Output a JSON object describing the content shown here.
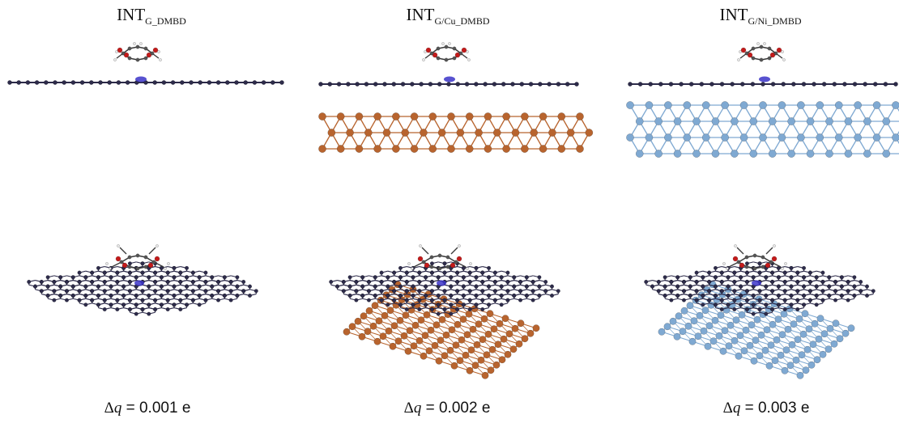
{
  "panels": [
    {
      "title_main": "INT",
      "title_sub": "G_DMBD",
      "charge": {
        "symbol": "Δ",
        "var": "q",
        "value": " = 0.001 e"
      },
      "substrate": "none",
      "substrate_color": ""
    },
    {
      "title_main": "INT",
      "title_sub": "G/Cu_DMBD",
      "charge": {
        "symbol": "Δ",
        "var": "q",
        "value": " = 0.002 e"
      },
      "substrate": "Cu",
      "substrate_color": "#b8642e"
    },
    {
      "title_main": "INT",
      "title_sub": "G/Ni_DMBD",
      "charge": {
        "symbol": "Δ",
        "var": "q",
        "value": " = 0.003 e"
      },
      "substrate": "Ni",
      "substrate_color": "#7fa9d2"
    }
  ],
  "colors": {
    "graphene": "#2d2b4a",
    "oxygen": "#c41a1a",
    "hydrogen": "#e8e8e8",
    "charge_density": "#3b34c8"
  }
}
